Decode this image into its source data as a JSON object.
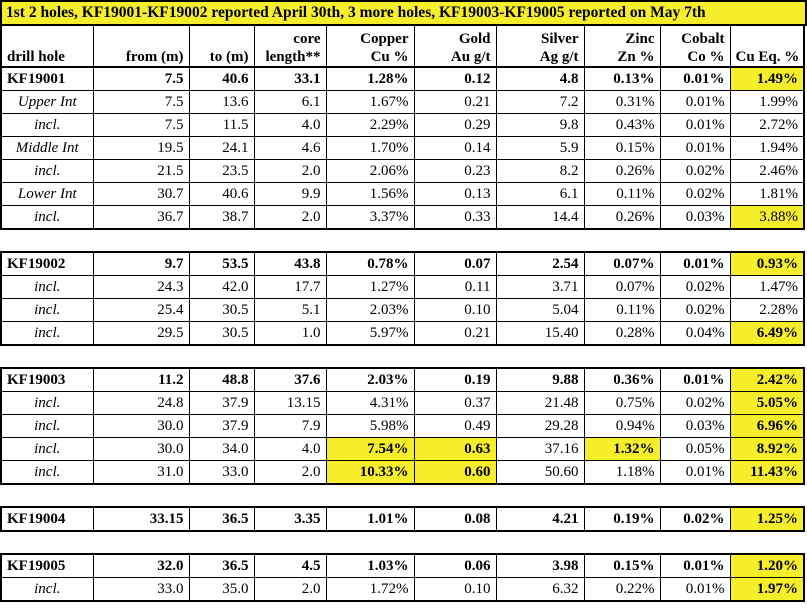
{
  "banner": "1st 2 holes, KF19001-KF19002 reported April 30th, 3 more holes, KF19003-KF19005 reported on May 7th",
  "columns": [
    {
      "top": "",
      "bottom": "drill hole"
    },
    {
      "top": "",
      "bottom": "from (m)"
    },
    {
      "top": "",
      "bottom": "to (m)"
    },
    {
      "top": "core",
      "bottom": "length**"
    },
    {
      "top": "Copper",
      "bottom": "Cu %"
    },
    {
      "top": "Gold",
      "bottom": "Au g/t"
    },
    {
      "top": "Silver",
      "bottom": "Ag g/t"
    },
    {
      "top": "Zinc",
      "bottom": "Zn %"
    },
    {
      "top": "Cobalt",
      "bottom": "Co %"
    },
    {
      "top": "",
      "bottom": "Cu Eq. %"
    }
  ],
  "holes": [
    {
      "main": {
        "cells": [
          "KF19001",
          "7.5",
          "40.6",
          "33.1",
          "1.28%",
          "0.12",
          "4.8",
          "0.13%",
          "0.01%",
          "1.49%"
        ],
        "highlight": [
          9
        ]
      },
      "subs": [
        {
          "cells": [
            "Upper Int",
            "7.5",
            "13.6",
            "6.1",
            "1.67%",
            "0.21",
            "7.2",
            "0.31%",
            "0.01%",
            "1.99%"
          ],
          "highlight": []
        },
        {
          "cells": [
            "incl.",
            "7.5",
            "11.5",
            "4.0",
            "2.29%",
            "0.29",
            "9.8",
            "0.43%",
            "0.01%",
            "2.72%"
          ],
          "highlight": []
        },
        {
          "cells": [
            "Middle Int",
            "19.5",
            "24.1",
            "4.6",
            "1.70%",
            "0.14",
            "5.9",
            "0.15%",
            "0.01%",
            "1.94%"
          ],
          "highlight": []
        },
        {
          "cells": [
            "incl.",
            "21.5",
            "23.5",
            "2.0",
            "2.06%",
            "0.23",
            "8.2",
            "0.26%",
            "0.02%",
            "2.46%"
          ],
          "highlight": []
        },
        {
          "cells": [
            "Lower Int",
            "30.7",
            "40.6",
            "9.9",
            "1.56%",
            "0.13",
            "6.1",
            "0.11%",
            "0.02%",
            "1.81%"
          ],
          "highlight": []
        },
        {
          "cells": [
            "incl.",
            "36.7",
            "38.7",
            "2.0",
            "3.37%",
            "0.33",
            "14.4",
            "0.26%",
            "0.03%",
            "3.88%"
          ],
          "highlight": [
            9
          ]
        }
      ]
    },
    {
      "main": {
        "cells": [
          "KF19002",
          "9.7",
          "53.5",
          "43.8",
          "0.78%",
          "0.07",
          "2.54",
          "0.07%",
          "0.01%",
          "0.93%"
        ],
        "highlight": [
          9
        ]
      },
      "subs": [
        {
          "cells": [
            "incl.",
            "24.3",
            "42.0",
            "17.7",
            "1.27%",
            "0.11",
            "3.71",
            "0.07%",
            "0.02%",
            "1.47%"
          ],
          "highlight": []
        },
        {
          "cells": [
            "incl.",
            "25.4",
            "30.5",
            "5.1",
            "2.03%",
            "0.10",
            "5.04",
            "0.11%",
            "0.02%",
            "2.28%"
          ],
          "highlight": []
        },
        {
          "cells": [
            "incl.",
            "29.5",
            "30.5",
            "1.0",
            "5.97%",
            "0.21",
            "15.40",
            "0.28%",
            "0.04%",
            "6.49%"
          ],
          "highlight": [
            9
          ],
          "bold": [
            9
          ]
        }
      ]
    },
    {
      "main": {
        "cells": [
          "KF19003",
          "11.2",
          "48.8",
          "37.6",
          "2.03%",
          "0.19",
          "9.88",
          "0.36%",
          "0.01%",
          "2.42%"
        ],
        "highlight": [
          9
        ]
      },
      "subs": [
        {
          "cells": [
            "incl.",
            "24.8",
            "37.9",
            "13.15",
            "4.31%",
            "0.37",
            "21.48",
            "0.75%",
            "0.02%",
            "5.05%"
          ],
          "highlight": [
            9
          ],
          "bold": [
            9
          ]
        },
        {
          "cells": [
            "incl.",
            "30.0",
            "37.9",
            "7.9",
            "5.98%",
            "0.49",
            "29.28",
            "0.94%",
            "0.03%",
            "6.96%"
          ],
          "highlight": [
            9
          ],
          "bold": [
            9
          ]
        },
        {
          "cells": [
            "incl.",
            "30.0",
            "34.0",
            "4.0",
            "7.54%",
            "0.63",
            "37.16",
            "1.32%",
            "0.05%",
            "8.92%"
          ],
          "highlight": [
            4,
            5,
            7,
            9
          ],
          "bold": [
            4,
            5,
            7,
            9
          ]
        },
        {
          "cells": [
            "incl.",
            "31.0",
            "33.0",
            "2.0",
            "10.33%",
            "0.60",
            "50.60",
            "1.18%",
            "0.01%",
            "11.43%"
          ],
          "highlight": [
            4,
            5,
            9
          ],
          "bold": [
            4,
            5,
            9
          ]
        }
      ]
    },
    {
      "main": {
        "cells": [
          "KF19004",
          "33.15",
          "36.5",
          "3.35",
          "1.01%",
          "0.08",
          "4.21",
          "0.19%",
          "0.02%",
          "1.25%"
        ],
        "highlight": [
          9
        ],
        "plain": true
      },
      "subs": []
    },
    {
      "main": {
        "cells": [
          "KF19005",
          "32.0",
          "36.5",
          "4.5",
          "1.03%",
          "0.06",
          "3.98",
          "0.15%",
          "0.01%",
          "1.20%"
        ],
        "highlight": [
          9
        ],
        "plain": true
      },
      "subs": [
        {
          "cells": [
            "incl.",
            "33.0",
            "35.0",
            "2.0",
            "1.72%",
            "0.10",
            "6.32",
            "0.22%",
            "0.01%",
            "1.97%"
          ],
          "highlight": [
            9
          ],
          "bold": [
            9
          ]
        }
      ]
    }
  ]
}
